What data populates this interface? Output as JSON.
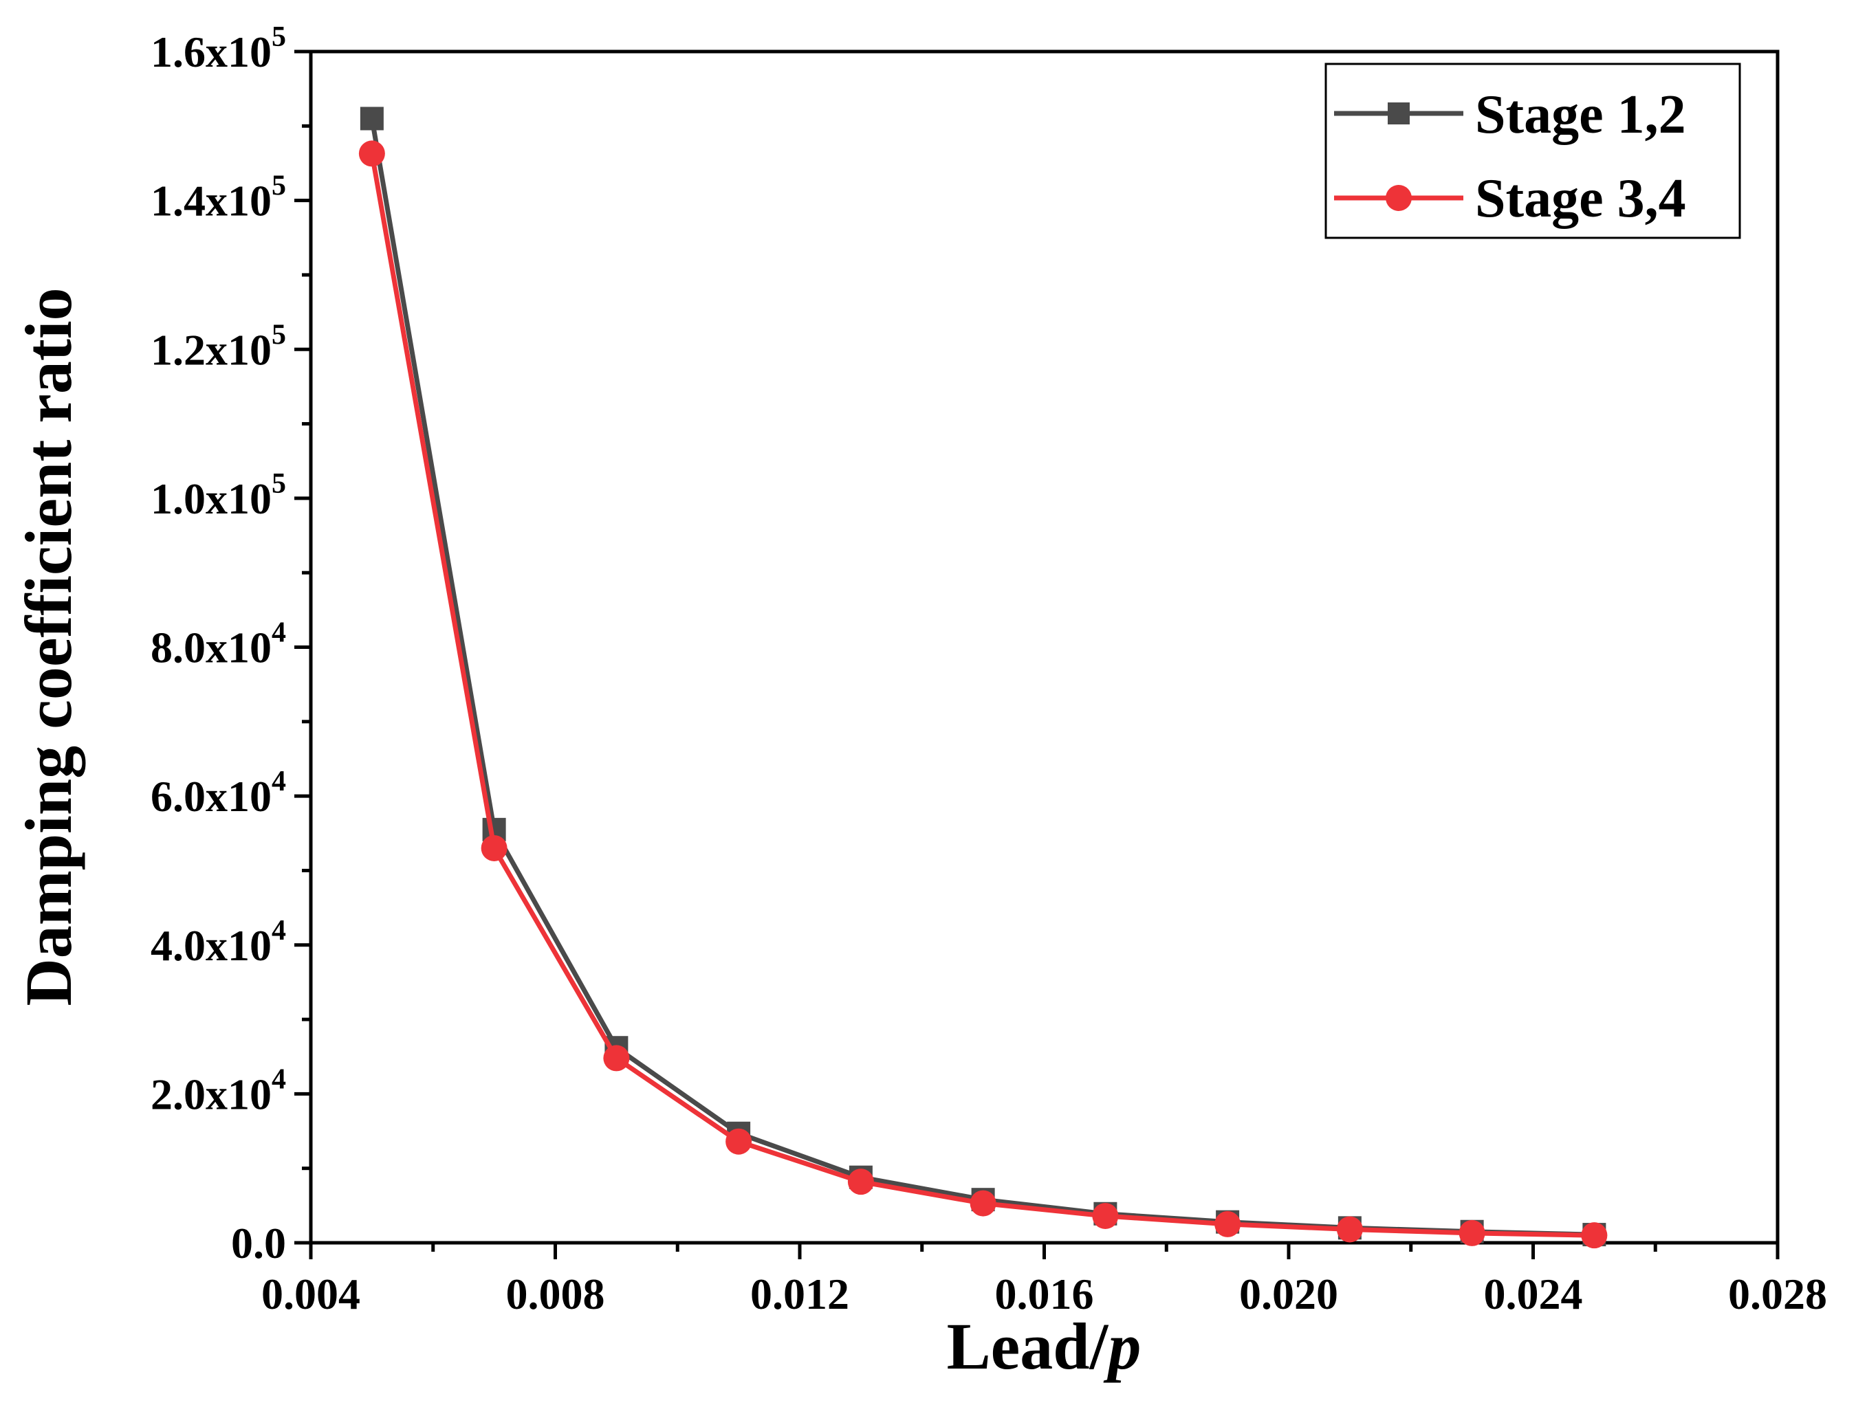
{
  "chart_data": {
    "type": "line",
    "title": "",
    "xlabel": "Lead/",
    "xlabel_italic": "p",
    "ylabel": "Damping coefficient ratio",
    "xlim": [
      0.004,
      0.028
    ],
    "ylim": [
      0,
      160000
    ],
    "x_ticks": [
      {
        "value": 0.004,
        "label": "0.004"
      },
      {
        "value": 0.008,
        "label": "0.008"
      },
      {
        "value": 0.012,
        "label": "0.012"
      },
      {
        "value": 0.016,
        "label": "0.016"
      },
      {
        "value": 0.02,
        "label": "0.020"
      },
      {
        "value": 0.024,
        "label": "0.024"
      },
      {
        "value": 0.028,
        "label": "0.028"
      }
    ],
    "y_ticks": [
      {
        "value": 0,
        "label": "0.0",
        "sup": ""
      },
      {
        "value": 20000,
        "label": "2.0x10",
        "sup": "4"
      },
      {
        "value": 40000,
        "label": "4.0x10",
        "sup": "4"
      },
      {
        "value": 60000,
        "label": "6.0x10",
        "sup": "4"
      },
      {
        "value": 80000,
        "label": "8.0x10",
        "sup": "4"
      },
      {
        "value": 100000,
        "label": "1.0x10",
        "sup": "5"
      },
      {
        "value": 120000,
        "label": "1.2x10",
        "sup": "5"
      },
      {
        "value": 140000,
        "label": "1.4x10",
        "sup": "5"
      },
      {
        "value": 160000,
        "label": "1.6x10",
        "sup": "5"
      }
    ],
    "x": [
      0.005,
      0.007,
      0.009,
      0.011,
      0.013,
      0.015,
      0.017,
      0.019,
      0.021,
      0.023,
      0.025
    ],
    "series": [
      {
        "name": "Stage 1,2",
        "color": "#4a4a4a",
        "marker": "square",
        "values": [
          151000,
          55500,
          26200,
          14700,
          8800,
          5800,
          3900,
          2800,
          2000,
          1500,
          1100
        ]
      },
      {
        "name": "Stage 3,4",
        "color": "#ee3338",
        "marker": "circle",
        "values": [
          146300,
          53000,
          24800,
          13600,
          8200,
          5300,
          3600,
          2500,
          1800,
          1300,
          1000
        ]
      }
    ],
    "legend_position": "top-right",
    "grid": false
  }
}
